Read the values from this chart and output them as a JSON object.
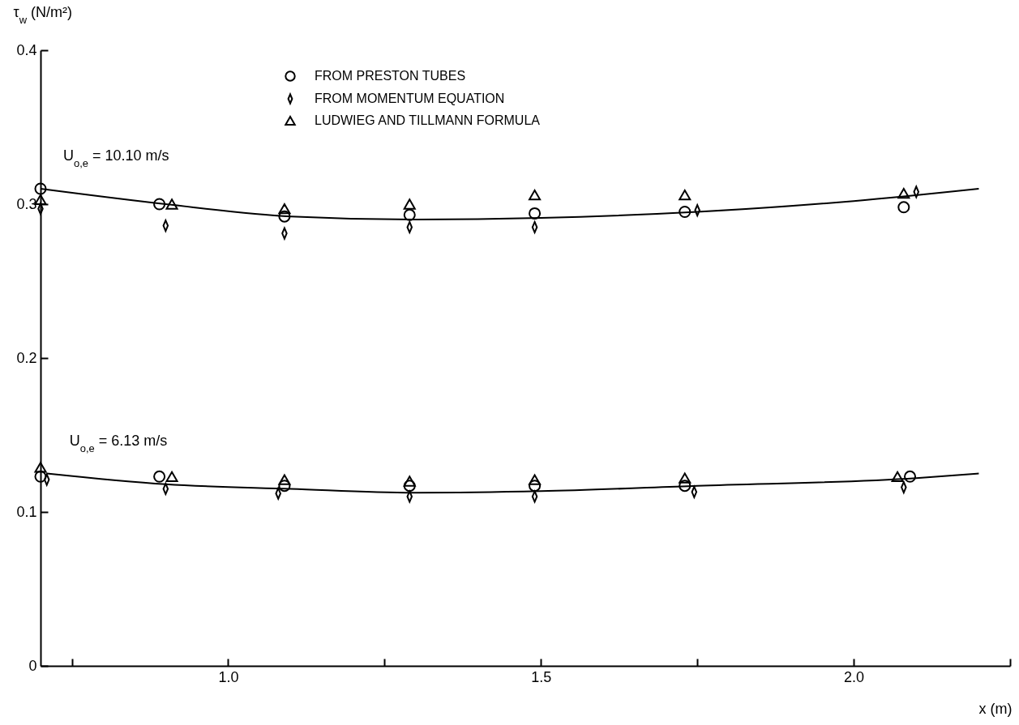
{
  "chart_data": {
    "type": "scatter",
    "ylabel": "τ$_{w}$ (N/m²)",
    "xlabel": "x (m)",
    "xlim": [
      0.7,
      2.25
    ],
    "xticks": [
      {
        "value": 0.75,
        "label": null
      },
      {
        "value": 1.0,
        "label": "1.0"
      },
      {
        "value": 1.25,
        "label": null
      },
      {
        "value": 1.5,
        "label": "1.5"
      },
      {
        "value": 1.75,
        "label": null
      },
      {
        "value": 2.0,
        "label": "2.0"
      },
      {
        "value": 2.25,
        "label": null
      }
    ],
    "ylim": [
      0,
      0.4
    ],
    "yticks": [
      0,
      0.1,
      0.2,
      0.3,
      0.4
    ],
    "grid": false,
    "legend": "top",
    "annotations": [
      "U$_{o,e}$ = 10.10 m/s",
      "U$_{o,e}$ = 6.13 m/s"
    ],
    "series": [
      {
        "name": "FROM PRESTON TUBES",
        "marker": "circle",
        "color": "#000000",
        "x": [
          0.7,
          0.89,
          1.09,
          1.29,
          1.49,
          1.73,
          2.08,
          0.7,
          0.89,
          1.09,
          1.29,
          1.49,
          1.73,
          2.09
        ],
        "values": [
          0.31,
          0.3,
          0.292,
          0.293,
          0.294,
          0.295,
          0.298,
          0.123,
          0.123,
          0.117,
          0.117,
          0.117,
          0.117,
          0.123
        ]
      },
      {
        "name": "FROM MOMENTUM EQUATION",
        "marker": "diamond",
        "color": "#000000",
        "x": [
          0.7,
          0.9,
          1.09,
          1.29,
          1.49,
          1.75,
          2.1,
          0.71,
          0.9,
          1.08,
          1.29,
          1.49,
          1.745,
          2.08
        ],
        "values": [
          0.297,
          0.286,
          0.281,
          0.285,
          0.285,
          0.296,
          0.308,
          0.121,
          0.115,
          0.112,
          0.11,
          0.11,
          0.113,
          0.116
        ]
      },
      {
        "name": "LUDWIEG AND TILLMANN FORMULA",
        "marker": "triangle",
        "color": "#000000",
        "x": [
          0.7,
          0.91,
          1.09,
          1.29,
          1.49,
          1.73,
          2.08,
          0.7,
          0.91,
          1.09,
          1.29,
          1.49,
          1.73,
          2.07
        ],
        "values": [
          0.303,
          0.3,
          0.297,
          0.3,
          0.306,
          0.306,
          0.307,
          0.129,
          0.123,
          0.121,
          0.12,
          0.121,
          0.122,
          0.123
        ]
      },
      {
        "type": "line",
        "color": "#000000",
        "x": [
          0.7,
          0.9,
          1.1,
          1.3,
          1.5,
          1.75,
          2.0,
          2.2
        ],
        "values": [
          0.31,
          0.3,
          0.292,
          0.29,
          0.291,
          0.295,
          0.302,
          0.31
        ]
      },
      {
        "type": "line",
        "color": "#000000",
        "x": [
          0.71,
          0.9,
          1.1,
          1.3,
          1.5,
          1.75,
          2.1,
          2.2
        ],
        "values": [
          0.125,
          0.118,
          0.115,
          0.1125,
          0.1135,
          0.117,
          0.122,
          0.125
        ]
      }
    ]
  }
}
